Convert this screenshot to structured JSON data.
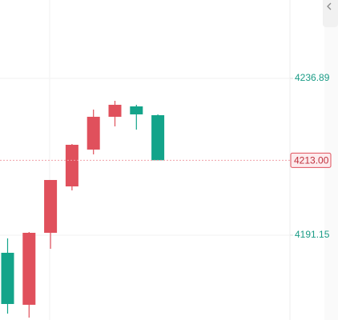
{
  "chart_data": {
    "type": "candlestick",
    "open": [
      4186.01,
      4170.84,
      4191.84,
      4205.38,
      4216.12,
      4225.69,
      4228.72,
      4226.15
    ],
    "high": [
      4190.21,
      4192.07,
      4207.25,
      4217.75,
      4227.79,
      4230.35,
      4229.19,
      4226.39
    ],
    "low": [
      4168.27,
      4167.1,
      4187.18,
      4204.21,
      4214.72,
      4222.89,
      4221.95,
      4213.0
    ],
    "close": [
      4171.07,
      4191.84,
      4207.25,
      4217.52,
      4225.69,
      4229.19,
      4226.39,
      4213.0
    ],
    "up_color": "#e0505c",
    "down_color": "#13a48a",
    "ylim": [
      4166.4,
      4259.76
    ],
    "yticks": [
      4236.89,
      4191.15
    ],
    "last_price": {
      "value": 4213,
      "label": "4213.00"
    },
    "grid": true
  }
}
